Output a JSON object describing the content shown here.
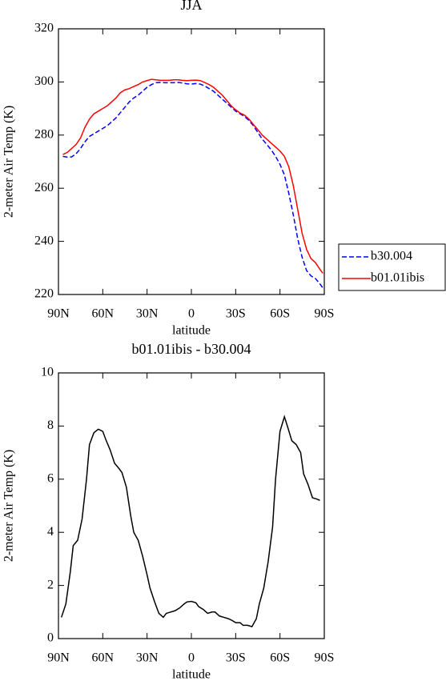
{
  "chart_data": [
    {
      "type": "line",
      "title": "JJA",
      "xlabel": "latitude",
      "ylabel": "2-meter Air Temp (K)",
      "x": [
        87,
        84,
        81,
        78,
        75,
        72,
        69,
        66,
        63,
        60,
        57,
        54,
        51,
        48,
        45,
        42,
        39,
        36,
        33,
        30,
        27,
        24,
        21,
        18,
        15,
        12,
        9,
        6,
        3,
        0,
        -3,
        -6,
        -9,
        -12,
        -15,
        -18,
        -21,
        -24,
        -27,
        -30,
        -33,
        -36,
        -39,
        -42,
        -45,
        -48,
        -51,
        -54,
        -57,
        -60,
        -63,
        -66,
        -69,
        -72,
        -75,
        -78,
        -81,
        -84,
        -87,
        -89
      ],
      "series": [
        {
          "name": "b30.004",
          "color": "#0000ff",
          "line_style": "dashed",
          "values": [
            272,
            271.7,
            271.8,
            273,
            275,
            277.5,
            279.5,
            280.5,
            281.5,
            282.5,
            283.5,
            285,
            286.5,
            288.5,
            290.5,
            292.5,
            294,
            295,
            296.5,
            298,
            299,
            299.7,
            299.8,
            299.7,
            299.7,
            299.7,
            299.8,
            299.6,
            299.3,
            299.2,
            299.4,
            299.2,
            298.5,
            297.5,
            296.5,
            295,
            293.5,
            292,
            290.5,
            289,
            288,
            287,
            285.5,
            283.5,
            281,
            278.5,
            276.5,
            274.5,
            272,
            269,
            265,
            258,
            250,
            241,
            234,
            229,
            227,
            226,
            224,
            222.5
          ]
        },
        {
          "name": "b01.01ibis",
          "color": "#ff0000",
          "line_style": "solid",
          "values": [
            272.7,
            273.5,
            275,
            276.5,
            279,
            283,
            286,
            288,
            289,
            290,
            291,
            292.5,
            294,
            296,
            297,
            297.5,
            298.3,
            299,
            300,
            300.5,
            301,
            300.8,
            300.6,
            300.6,
            300.6,
            300.8,
            300.8,
            300.6,
            300.5,
            300.6,
            300.7,
            300.5,
            299.8,
            299,
            298,
            296.5,
            295,
            293,
            291,
            289.5,
            288.3,
            287.5,
            286,
            284,
            282,
            280,
            278.5,
            277,
            275.5,
            274,
            272,
            268,
            261,
            252,
            243,
            237,
            233.5,
            232,
            229.5,
            228
          ]
        }
      ],
      "xlim": [
        90,
        -90
      ],
      "xticks": [
        {
          "value": 90,
          "label": "90N"
        },
        {
          "value": 60,
          "label": "60N"
        },
        {
          "value": 30,
          "label": "30N"
        },
        0,
        {
          "value": -30,
          "label": "30S"
        },
        {
          "value": -60,
          "label": "60S"
        },
        {
          "value": -90,
          "label": "90S"
        }
      ],
      "ylim": [
        220,
        320
      ],
      "yticks": [
        220,
        240,
        260,
        280,
        300,
        320
      ],
      "legend": "right"
    },
    {
      "type": "line",
      "title": "b01.01ibis - b30.004",
      "xlabel": "latitude",
      "ylabel": "2-meter Air Temp (K)",
      "x": [
        88,
        85,
        82,
        80,
        77,
        74,
        71,
        69,
        66,
        63,
        60,
        58,
        55,
        52,
        49,
        47,
        44,
        41,
        39,
        36,
        33,
        30,
        28,
        25,
        22,
        19,
        17,
        14,
        11,
        8,
        5,
        3,
        0,
        -3,
        -5,
        -8,
        -11,
        -14,
        -16,
        -19,
        -22,
        -25,
        -27,
        -30,
        -33,
        -35,
        -38,
        -41,
        -44,
        -46,
        -49,
        -52,
        -55,
        -57,
        -60,
        -63,
        -65,
        -68,
        -71,
        -74,
        -76,
        -79,
        -82,
        -85,
        -87
      ],
      "series": [
        {
          "color": "#000000",
          "line_style": "solid",
          "values": [
            0.8,
            1.3,
            2.5,
            3.5,
            3.7,
            4.5,
            6.0,
            7.3,
            7.75,
            7.88,
            7.8,
            7.5,
            7.1,
            6.6,
            6.4,
            6.25,
            5.7,
            4.6,
            4.0,
            3.7,
            3.1,
            2.4,
            1.9,
            1.4,
            0.95,
            0.8,
            0.95,
            1.0,
            1.05,
            1.15,
            1.3,
            1.38,
            1.4,
            1.35,
            1.2,
            1.1,
            0.95,
            1.0,
            1.0,
            0.85,
            0.8,
            0.75,
            0.7,
            0.6,
            0.6,
            0.5,
            0.5,
            0.45,
            0.75,
            1.3,
            1.9,
            2.9,
            4.2,
            6.0,
            7.8,
            8.35,
            8.0,
            7.45,
            7.3,
            7.0,
            6.2,
            5.8,
            5.3,
            5.25,
            5.2
          ]
        }
      ],
      "xlim": [
        90,
        -90
      ],
      "xticks": [
        {
          "value": 90,
          "label": "90N"
        },
        {
          "value": 60,
          "label": "60N"
        },
        {
          "value": 30,
          "label": "30N"
        },
        0,
        {
          "value": -30,
          "label": "30S"
        },
        {
          "value": -60,
          "label": "60S"
        },
        {
          "value": -90,
          "label": "90S"
        }
      ],
      "ylim": [
        0,
        10
      ],
      "yticks": [
        0,
        2,
        4,
        6,
        8,
        10
      ]
    }
  ]
}
